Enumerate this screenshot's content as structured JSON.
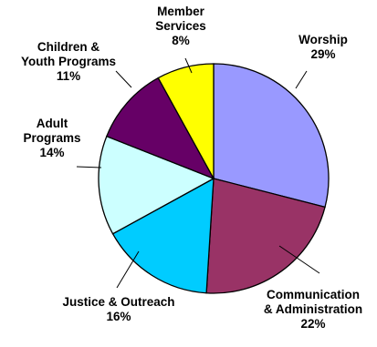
{
  "chart_data": {
    "type": "pie",
    "title": "",
    "slices": [
      {
        "label_lines": [
          "Worship",
          "29%"
        ],
        "value": 29,
        "color": "#9999ff"
      },
      {
        "label_lines": [
          "Communication",
          "& Administration",
          "22%"
        ],
        "value": 22,
        "color": "#993366"
      },
      {
        "label_lines": [
          "Justice & Outreach",
          "16%"
        ],
        "value": 16,
        "color": "#00ccff"
      },
      {
        "label_lines": [
          "Adult",
          "Programs",
          "14%"
        ],
        "value": 14,
        "color": "#ccffff"
      },
      {
        "label_lines": [
          "Children &",
          "Youth Programs",
          "11%"
        ],
        "value": 11,
        "color": "#660066"
      },
      {
        "label_lines": [
          "Member",
          "Services",
          "8%"
        ],
        "value": 8,
        "color": "#ffff00"
      }
    ],
    "start_angle": "12 o'clock",
    "direction": "clockwise",
    "legend": "none"
  }
}
